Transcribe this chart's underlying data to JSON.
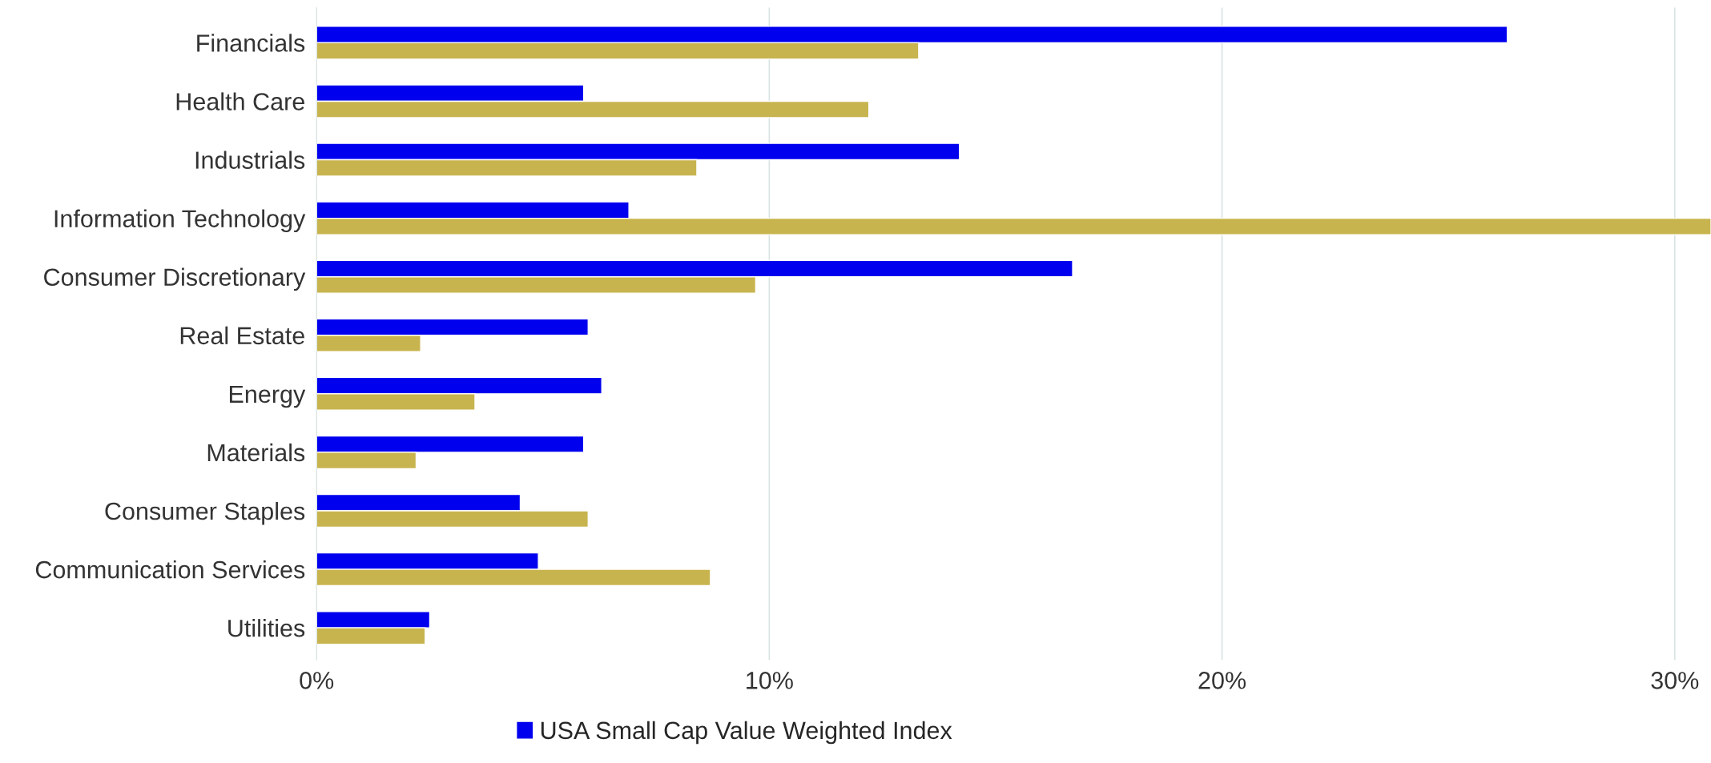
{
  "chart_data": {
    "type": "bar",
    "orientation": "horizontal",
    "categories": [
      "Financials",
      "Health Care",
      "Industrials",
      "Information Technology",
      "Consumer Discretionary",
      "Real Estate",
      "Energy",
      "Materials",
      "Consumer Staples",
      "Communication Services",
      "Utilities"
    ],
    "series": [
      {
        "name": "USA Small Cap Value Weighted Index",
        "color": "#0000ee",
        "values": [
          26.3,
          5.9,
          14.2,
          6.9,
          16.7,
          6.0,
          6.3,
          5.9,
          4.5,
          4.9,
          2.5
        ]
      },
      {
        "color": "#c8b44f",
        "values": [
          13.3,
          12.2,
          8.4,
          30.8,
          9.7,
          2.3,
          3.5,
          2.2,
          6.0,
          8.7,
          2.4
        ]
      }
    ],
    "xlim": [
      0,
      30.8
    ],
    "xticks": [
      {
        "value": 0,
        "label": "0%"
      },
      {
        "value": 10,
        "label": "10%"
      },
      {
        "value": 20,
        "label": "20%"
      },
      {
        "value": 30,
        "label": "30%"
      }
    ],
    "grid": "x",
    "legend": "bottom"
  }
}
